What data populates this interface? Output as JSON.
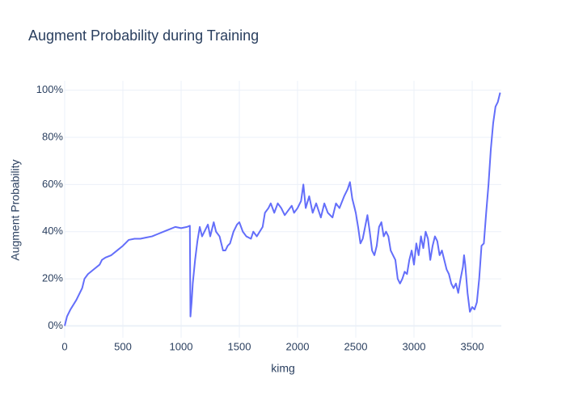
{
  "chart_data": {
    "type": "line",
    "title": "Augment Probability during Training",
    "x_label": "kimg",
    "y_label": "Augment Probability",
    "x": [
      0,
      20,
      50,
      100,
      150,
      170,
      200,
      250,
      300,
      320,
      350,
      400,
      450,
      500,
      520,
      550,
      600,
      650,
      700,
      750,
      800,
      850,
      900,
      950,
      1000,
      1050,
      1075,
      1080,
      1090,
      1100,
      1120,
      1140,
      1160,
      1180,
      1200,
      1230,
      1250,
      1280,
      1300,
      1330,
      1360,
      1380,
      1400,
      1420,
      1450,
      1480,
      1500,
      1530,
      1560,
      1600,
      1620,
      1650,
      1700,
      1720,
      1750,
      1770,
      1800,
      1830,
      1860,
      1890,
      1920,
      1950,
      1970,
      2000,
      2030,
      2050,
      2070,
      2100,
      2130,
      2160,
      2200,
      2230,
      2260,
      2300,
      2330,
      2360,
      2400,
      2430,
      2450,
      2470,
      2490,
      2500,
      2520,
      2540,
      2560,
      2580,
      2600,
      2620,
      2640,
      2660,
      2680,
      2700,
      2720,
      2740,
      2760,
      2780,
      2800,
      2820,
      2840,
      2860,
      2880,
      2900,
      2920,
      2940,
      2960,
      2980,
      3000,
      3020,
      3040,
      3060,
      3080,
      3100,
      3120,
      3140,
      3160,
      3180,
      3200,
      3220,
      3240,
      3260,
      3280,
      3300,
      3320,
      3340,
      3360,
      3380,
      3400,
      3420,
      3430,
      3440,
      3460,
      3480,
      3500,
      3520,
      3540,
      3560,
      3580,
      3600,
      3620,
      3640,
      3660,
      3680,
      3700,
      3720,
      3740
    ],
    "series": [
      {
        "color": "#636efa",
        "values": [
          0,
          4,
          7,
          11,
          16,
          20,
          22,
          24,
          26,
          28,
          29,
          30,
          32,
          34,
          35,
          36.5,
          37,
          37,
          37.5,
          38,
          39,
          40,
          41,
          42,
          41.5,
          42,
          42.5,
          4,
          10,
          18,
          28,
          36,
          42,
          38,
          40,
          43,
          38,
          44,
          40,
          38,
          32,
          32,
          34,
          35,
          40,
          43,
          44,
          40,
          38,
          37,
          40,
          38,
          42,
          48,
          50,
          52,
          48,
          52,
          50,
          47,
          49,
          51,
          48,
          50,
          53,
          60,
          50,
          55,
          48,
          52,
          46,
          52,
          48,
          46,
          52,
          50,
          55,
          58,
          61,
          54,
          50,
          48,
          42,
          35,
          37,
          42,
          47,
          40,
          32,
          30,
          34,
          42,
          44,
          38,
          40,
          38,
          32,
          30,
          28,
          20,
          18,
          20,
          23,
          22,
          28,
          32,
          26,
          35,
          30,
          38,
          33,
          40,
          37,
          28,
          34,
          38,
          36,
          30,
          32,
          28,
          24,
          22,
          18,
          16,
          18,
          14,
          20,
          25,
          30,
          26,
          14,
          6,
          8,
          7,
          10,
          20,
          34,
          35,
          48,
          60,
          75,
          86,
          93,
          95,
          99
        ]
      }
    ],
    "xlim": [
      0,
      3750
    ],
    "xticks": [
      0,
      500,
      1000,
      1500,
      2000,
      2500,
      3000,
      3500
    ],
    "ylim": [
      -5,
      104
    ],
    "yticks": [
      {
        "value": 0,
        "label": "0%"
      },
      {
        "value": 20,
        "label": "20%"
      },
      {
        "value": 40,
        "label": "40%"
      },
      {
        "value": 60,
        "label": "60%"
      },
      {
        "value": 80,
        "label": "80%"
      },
      {
        "value": 100,
        "label": "100%"
      }
    ],
    "grid": true
  }
}
